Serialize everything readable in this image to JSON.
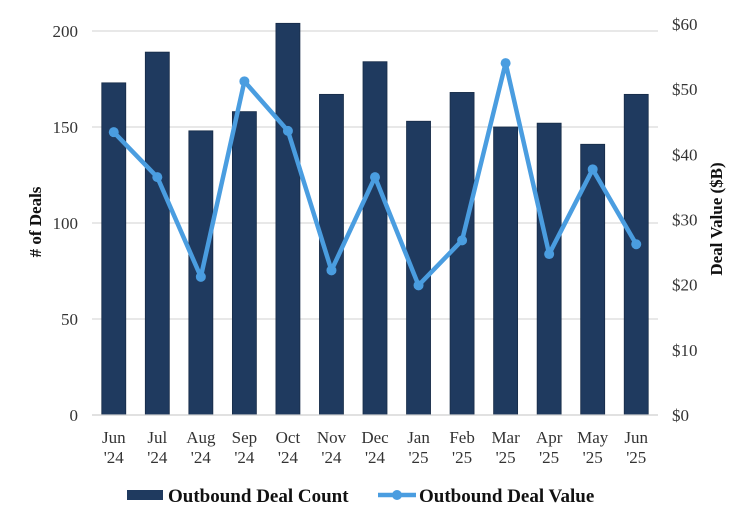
{
  "chart_data": {
    "type": "bar+line",
    "title": "",
    "categories": [
      [
        "Jun",
        "'24"
      ],
      [
        "Jul",
        "'24"
      ],
      [
        "Aug",
        "'24"
      ],
      [
        "Sep",
        "'24"
      ],
      [
        "Oct",
        "'24"
      ],
      [
        "Nov",
        "'24"
      ],
      [
        "Dec",
        "'24"
      ],
      [
        "Jan",
        "'25"
      ],
      [
        "Feb",
        "'25"
      ],
      [
        "Mar",
        "'25"
      ],
      [
        "Apr",
        "'25"
      ],
      [
        "May",
        "'25"
      ],
      [
        "Jun",
        "'25"
      ]
    ],
    "series": [
      {
        "name": "Outbound Deal Count",
        "type": "bar",
        "axis": "left",
        "color": "#1f3a5f",
        "values": [
          173,
          189,
          148,
          158,
          204,
          167,
          184,
          153,
          168,
          150,
          152,
          141,
          167
        ]
      },
      {
        "name": "Outbound Deal Value",
        "type": "line",
        "axis": "right",
        "color": "#4a9de0",
        "values": [
          43.4,
          36.5,
          21.2,
          51.2,
          43.6,
          22.2,
          36.5,
          19.9,
          26.8,
          54.0,
          24.7,
          37.7,
          26.2
        ]
      }
    ],
    "y_left": {
      "label": "# of Deals",
      "range": [
        0,
        200
      ],
      "ticks": [
        0,
        50,
        100,
        150,
        200
      ],
      "tick_labels": [
        "0",
        "50",
        "100",
        "150",
        "200"
      ]
    },
    "y_right": {
      "label": "Deal Value ($B)",
      "range": [
        0,
        60
      ],
      "ticks": [
        0,
        10,
        20,
        30,
        40,
        50,
        60
      ],
      "tick_labels": [
        "$0",
        "$10",
        "$20",
        "$30",
        "$40",
        "$50",
        "$60"
      ]
    },
    "grid": true,
    "legend": {
      "position": "bottom",
      "items": [
        {
          "label": "Outbound Deal Count",
          "marker": "bar"
        },
        {
          "label": "Outbound Deal Value",
          "marker": "line-dot"
        }
      ]
    }
  }
}
